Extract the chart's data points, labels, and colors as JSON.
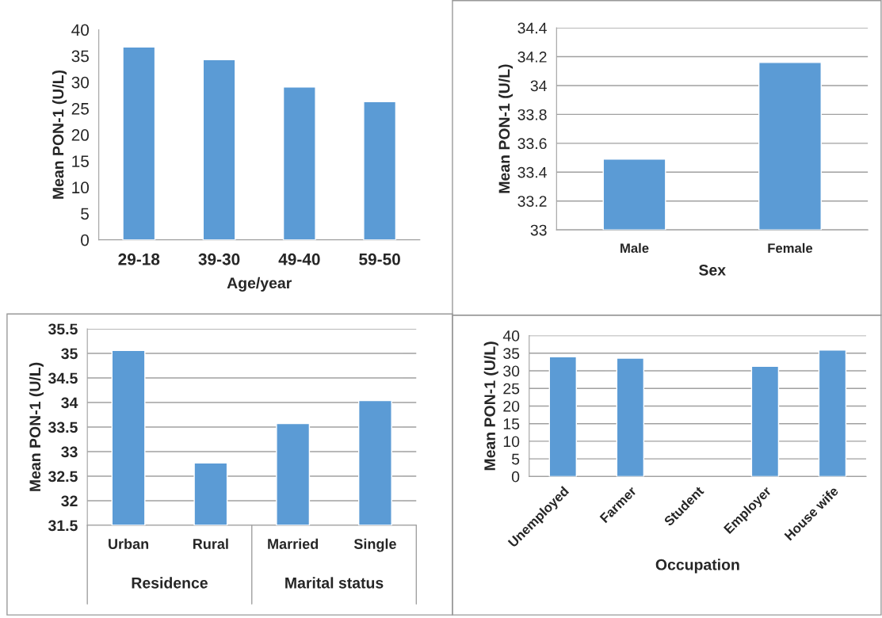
{
  "chart_data": [
    {
      "type": "bar",
      "xlabel": "Age/year",
      "ylabel": "Mean PON-1 (U/L)",
      "categories": [
        "29-18",
        "39-30",
        "49-40",
        "59-50"
      ],
      "values": [
        36.7,
        34.3,
        29.1,
        26.3
      ],
      "color": "#5b9bd5",
      "ylim": [
        0,
        40
      ],
      "yticks": [
        0,
        5,
        10,
        15,
        20,
        25,
        30,
        35,
        40
      ],
      "grid": false
    },
    {
      "type": "bar",
      "xlabel": "Sex",
      "ylabel": "Mean PON-1 (U/L)",
      "categories": [
        "Male",
        "Female"
      ],
      "values": [
        33.49,
        34.16
      ],
      "color": "#5b9bd5",
      "ylim": [
        33,
        34.4
      ],
      "yticks": [
        33,
        33.2,
        33.4,
        33.6,
        33.8,
        34,
        34.2,
        34.4
      ],
      "grid": "y"
    },
    {
      "type": "bar",
      "ylabel": "Mean PON-1 (U/L)",
      "categories": [
        "Urban",
        "Rural",
        "Married",
        "Single"
      ],
      "values": [
        35.06,
        32.77,
        33.57,
        34.04
      ],
      "color": "#5b9bd5",
      "ylim": [
        31.5,
        35.5
      ],
      "yticks": [
        31.5,
        32,
        32.5,
        33,
        33.5,
        34,
        34.5,
        35,
        35.5
      ],
      "grid": "y",
      "annotations": [
        "Residence",
        "Marital status"
      ]
    },
    {
      "type": "bar",
      "xlabel": "Occupation",
      "ylabel": "Mean PON-1 (U/L)",
      "categories": [
        "Unemployed",
        "Farmer",
        "Student",
        "Employer",
        "House wife"
      ],
      "values": [
        34.0,
        33.6,
        null,
        31.3,
        35.9
      ],
      "color": "#5b9bd5",
      "ylim": [
        0,
        40
      ],
      "yticks": [
        0,
        5,
        10,
        15,
        20,
        25,
        30,
        35,
        40
      ],
      "grid": "y"
    }
  ]
}
